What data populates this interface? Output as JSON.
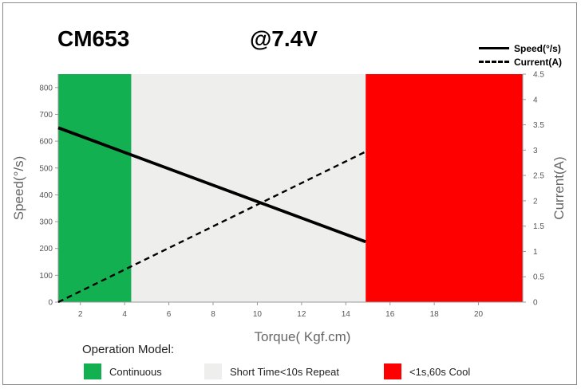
{
  "header": {
    "model": "CM653",
    "voltage": "@7.4V"
  },
  "legend": {
    "speed": "Speed(°/s)",
    "current": "Current(A)"
  },
  "operation": {
    "title": "Operation Model:",
    "items": [
      {
        "label": "Continuous",
        "color": "#12b050"
      },
      {
        "label": "Short Time<10s Repeat",
        "color": "#eeeeec"
      },
      {
        "label": "<1s,60s Cool",
        "color": "#ff0000"
      }
    ]
  },
  "chart_data": {
    "type": "line",
    "xlabel": "Torque( Kgf.cm)",
    "ylabel": "Speed(°/s)",
    "y2label": "Current(A)",
    "xlim": [
      1,
      22
    ],
    "ylim": [
      0,
      850
    ],
    "y2lim": [
      0,
      4.5
    ],
    "xticks": [
      2,
      4,
      6,
      8,
      10,
      12,
      14,
      16,
      18,
      20
    ],
    "yticks": [
      0,
      100,
      200,
      300,
      400,
      500,
      600,
      700,
      800
    ],
    "y2ticks": [
      "0",
      "0.5",
      "1",
      "1.5",
      "2",
      "2.5",
      "3",
      "3.5",
      "4",
      "4.5"
    ],
    "regions": [
      {
        "from": 1,
        "to": 4.3,
        "color": "#12b050"
      },
      {
        "from": 4.3,
        "to": 14.9,
        "color": "#eeeeec"
      },
      {
        "from": 14.9,
        "to": 22,
        "color": "#ff0000"
      }
    ],
    "series": [
      {
        "name": "Speed(°/s)",
        "axis": "left",
        "style": "solid",
        "x": [
          1,
          14.9
        ],
        "values": [
          650,
          225
        ]
      },
      {
        "name": "Current(A)",
        "axis": "right",
        "style": "dashed",
        "x": [
          1,
          14.9
        ],
        "values": [
          0,
          2.97
        ]
      }
    ]
  }
}
